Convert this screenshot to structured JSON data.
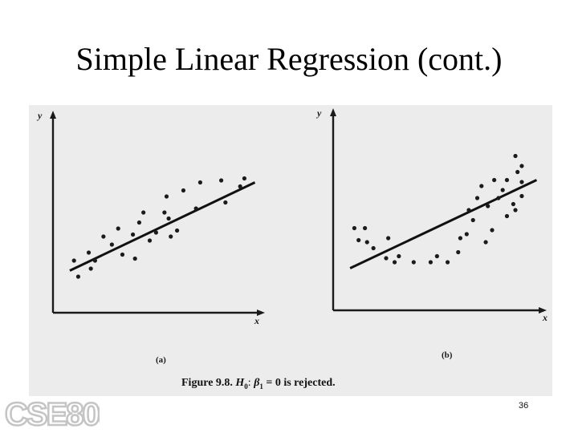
{
  "slide": {
    "title": "Simple Linear Regression (cont.)",
    "page_number": "36",
    "logo_text": "CSE808"
  },
  "caption": {
    "figure_label": "Figure 9.8.",
    "h0": "H",
    "h0_sub": "0",
    "colon": ":",
    "beta": "β",
    "beta_sub": "1",
    "rest": "= 0 is rejected."
  },
  "chart_data": [
    {
      "type": "scatter",
      "panel_label": "(a)",
      "xlabel": "x",
      "ylabel": "y",
      "xlim": [
        0,
        10
      ],
      "ylim": [
        0,
        10
      ],
      "points": [
        {
          "x": 1.0,
          "y": 2.6
        },
        {
          "x": 1.2,
          "y": 1.8
        },
        {
          "x": 1.7,
          "y": 3.0
        },
        {
          "x": 1.8,
          "y": 2.2
        },
        {
          "x": 2.0,
          "y": 2.6
        },
        {
          "x": 2.4,
          "y": 3.8
        },
        {
          "x": 3.1,
          "y": 4.2
        },
        {
          "x": 3.3,
          "y": 2.9
        },
        {
          "x": 3.8,
          "y": 3.9
        },
        {
          "x": 3.9,
          "y": 2.7
        },
        {
          "x": 4.1,
          "y": 4.5
        },
        {
          "x": 4.3,
          "y": 5.0
        },
        {
          "x": 4.6,
          "y": 3.6
        },
        {
          "x": 4.9,
          "y": 4.0
        },
        {
          "x": 5.3,
          "y": 5.0
        },
        {
          "x": 5.4,
          "y": 5.8
        },
        {
          "x": 5.6,
          "y": 3.8
        },
        {
          "x": 5.9,
          "y": 4.1
        },
        {
          "x": 6.2,
          "y": 6.1
        },
        {
          "x": 6.8,
          "y": 5.2
        },
        {
          "x": 7.0,
          "y": 6.5
        },
        {
          "x": 8.0,
          "y": 6.6
        },
        {
          "x": 8.2,
          "y": 5.5
        },
        {
          "x": 8.9,
          "y": 6.3
        },
        {
          "x": 9.1,
          "y": 6.7
        },
        {
          "x": 5.5,
          "y": 4.7
        },
        {
          "x": 2.8,
          "y": 3.4
        }
      ],
      "fit_line": [
        {
          "x": 0.8,
          "y": 2.1
        },
        {
          "x": 9.6,
          "y": 6.5
        }
      ]
    },
    {
      "type": "scatter",
      "panel_label": "(b)",
      "xlabel": "x",
      "ylabel": "y",
      "xlim": [
        0,
        10
      ],
      "ylim": [
        0,
        10
      ],
      "points": [
        {
          "x": 1.0,
          "y": 4.1
        },
        {
          "x": 1.2,
          "y": 3.5
        },
        {
          "x": 1.5,
          "y": 4.1
        },
        {
          "x": 1.6,
          "y": 3.4
        },
        {
          "x": 1.9,
          "y": 3.1
        },
        {
          "x": 2.5,
          "y": 2.6
        },
        {
          "x": 2.6,
          "y": 3.6
        },
        {
          "x": 2.9,
          "y": 2.4
        },
        {
          "x": 3.1,
          "y": 2.7
        },
        {
          "x": 3.8,
          "y": 2.4
        },
        {
          "x": 4.6,
          "y": 2.4
        },
        {
          "x": 4.9,
          "y": 2.7
        },
        {
          "x": 5.4,
          "y": 2.4
        },
        {
          "x": 5.9,
          "y": 2.9
        },
        {
          "x": 6.0,
          "y": 3.6
        },
        {
          "x": 6.3,
          "y": 3.8
        },
        {
          "x": 6.4,
          "y": 5.0
        },
        {
          "x": 6.6,
          "y": 4.5
        },
        {
          "x": 6.8,
          "y": 5.6
        },
        {
          "x": 7.0,
          "y": 6.2
        },
        {
          "x": 7.2,
          "y": 3.4
        },
        {
          "x": 7.3,
          "y": 5.2
        },
        {
          "x": 7.5,
          "y": 4.0
        },
        {
          "x": 7.6,
          "y": 6.5
        },
        {
          "x": 7.8,
          "y": 5.6
        },
        {
          "x": 8.0,
          "y": 6.0
        },
        {
          "x": 8.2,
          "y": 6.5
        },
        {
          "x": 8.2,
          "y": 4.7
        },
        {
          "x": 8.5,
          "y": 5.3
        },
        {
          "x": 8.7,
          "y": 6.9
        },
        {
          "x": 8.9,
          "y": 7.2
        },
        {
          "x": 8.9,
          "y": 6.4
        },
        {
          "x": 8.9,
          "y": 5.7
        },
        {
          "x": 8.6,
          "y": 5.0
        },
        {
          "x": 8.6,
          "y": 7.7
        }
      ],
      "fit_line": [
        {
          "x": 0.8,
          "y": 2.1
        },
        {
          "x": 9.6,
          "y": 6.5
        }
      ]
    }
  ]
}
